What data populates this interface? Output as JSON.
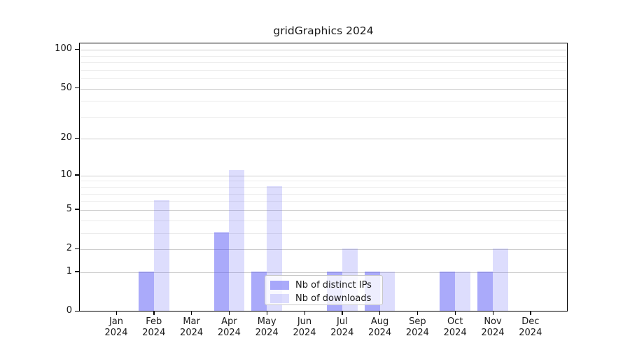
{
  "window": {
    "background": "#ffffff"
  },
  "chart_data": {
    "type": "bar",
    "title": "gridGraphics 2024",
    "xlabel": "",
    "ylabel": "",
    "x": {
      "months": [
        "Jan",
        "Feb",
        "Mar",
        "Apr",
        "May",
        "Jun",
        "Jul",
        "Aug",
        "Sep",
        "Oct",
        "Nov",
        "Dec"
      ],
      "year": "2024"
    },
    "series": [
      {
        "name": "Nb of distinct IPs",
        "color": "#5555F580",
        "values": [
          0,
          1,
          0,
          3,
          1,
          0,
          1,
          1,
          0,
          1,
          1,
          0
        ]
      },
      {
        "name": "Nb of downloads",
        "color": "#5555F533",
        "values": [
          0,
          6,
          0,
          11,
          8,
          0,
          2,
          1,
          0,
          1,
          2,
          0
        ]
      }
    ],
    "y_axis": {
      "scale": "log1p",
      "range": [
        0,
        100
      ],
      "ticks": [
        100,
        50,
        20,
        10,
        5,
        2,
        1,
        0
      ],
      "minor_gridlines": [
        3,
        4,
        6,
        7,
        8,
        9,
        30,
        40,
        60,
        70,
        80,
        90
      ]
    },
    "legend": {
      "position": "inside-bottom-center",
      "entries": [
        "Nb of distinct IPs",
        "Nb of downloads"
      ]
    },
    "grid": {
      "on": true,
      "major_color": "#cdcdcd",
      "minor_color": "#ececec"
    },
    "axis_color": "#000000",
    "text_color": "#1a1a1a"
  }
}
